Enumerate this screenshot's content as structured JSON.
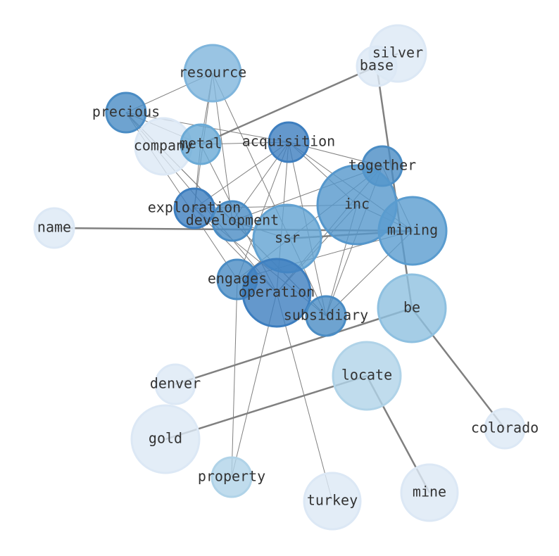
{
  "graph": {
    "edge_color": "#808080",
    "nodes": [
      {
        "id": "silver",
        "color": "#dce8f5"
      },
      {
        "id": "base",
        "color": "#dce8f5"
      },
      {
        "id": "resource",
        "color": "#7fb5dc"
      },
      {
        "id": "precious",
        "color": "#4a8cc4"
      },
      {
        "id": "company",
        "color": "#dce8f5"
      },
      {
        "id": "metal",
        "color": "#6aaad6"
      },
      {
        "id": "acquisition",
        "color": "#3d7ebf"
      },
      {
        "id": "together",
        "color": "#4a8cc4"
      },
      {
        "id": "inc",
        "color": "#5597cc"
      },
      {
        "id": "mining",
        "color": "#5a9ccf"
      },
      {
        "id": "exploration",
        "color": "#3d7ebf"
      },
      {
        "id": "development",
        "color": "#4a8cc4"
      },
      {
        "id": "name",
        "color": "#dce8f5"
      },
      {
        "id": "ssr",
        "color": "#62a2d2"
      },
      {
        "id": "engages",
        "color": "#4a8cc4"
      },
      {
        "id": "operation",
        "color": "#3d7ebf"
      },
      {
        "id": "subsidiary",
        "color": "#4a8cc4"
      },
      {
        "id": "be",
        "color": "#8ec0e0"
      },
      {
        "id": "denver",
        "color": "#dce8f5"
      },
      {
        "id": "locate",
        "color": "#b0d3e8"
      },
      {
        "id": "gold",
        "color": "#dce8f5"
      },
      {
        "id": "colorado",
        "color": "#dce8f5"
      },
      {
        "id": "property",
        "color": "#b0d3e8"
      },
      {
        "id": "mine",
        "color": "#dce8f5"
      },
      {
        "id": "turkey",
        "color": "#dce8f5"
      }
    ],
    "strong_edges": [
      [
        "base",
        "metal"
      ],
      [
        "name",
        "mining"
      ],
      [
        "base",
        "be"
      ],
      [
        "be",
        "colorado"
      ],
      [
        "denver",
        "be"
      ],
      [
        "gold",
        "locate"
      ],
      [
        "locate",
        "mine"
      ],
      [
        "ssr",
        "mining"
      ],
      [
        "silver",
        "base"
      ]
    ],
    "edges": [
      [
        "resource",
        "precious"
      ],
      [
        "resource",
        "metal"
      ],
      [
        "resource",
        "development"
      ],
      [
        "resource",
        "subsidiary"
      ],
      [
        "resource",
        "exploration"
      ],
      [
        "precious",
        "acquisition"
      ],
      [
        "precious",
        "metal"
      ],
      [
        "precious",
        "engages"
      ],
      [
        "precious",
        "operation"
      ],
      [
        "precious",
        "subsidiary"
      ],
      [
        "precious",
        "development"
      ],
      [
        "metal",
        "acquisition"
      ],
      [
        "metal",
        "exploration"
      ],
      [
        "metal",
        "operation"
      ],
      [
        "acquisition",
        "together"
      ],
      [
        "acquisition",
        "exploration"
      ],
      [
        "acquisition",
        "engages"
      ],
      [
        "acquisition",
        "operation"
      ],
      [
        "acquisition",
        "subsidiary"
      ],
      [
        "acquisition",
        "mining"
      ],
      [
        "acquisition",
        "inc"
      ],
      [
        "acquisition",
        "development"
      ],
      [
        "together",
        "development"
      ],
      [
        "together",
        "engages"
      ],
      [
        "together",
        "operation"
      ],
      [
        "together",
        "subsidiary"
      ],
      [
        "together",
        "mining"
      ],
      [
        "inc",
        "exploration"
      ],
      [
        "inc",
        "subsidiary"
      ],
      [
        "inc",
        "operation"
      ],
      [
        "inc",
        "mining"
      ],
      [
        "mining",
        "subsidiary"
      ],
      [
        "mining",
        "engages"
      ],
      [
        "exploration",
        "subsidiary"
      ],
      [
        "exploration",
        "operation"
      ],
      [
        "development",
        "subsidiary"
      ],
      [
        "engages",
        "property"
      ],
      [
        "operation",
        "property"
      ],
      [
        "operation",
        "turkey"
      ],
      [
        "ssr",
        "development"
      ]
    ]
  }
}
